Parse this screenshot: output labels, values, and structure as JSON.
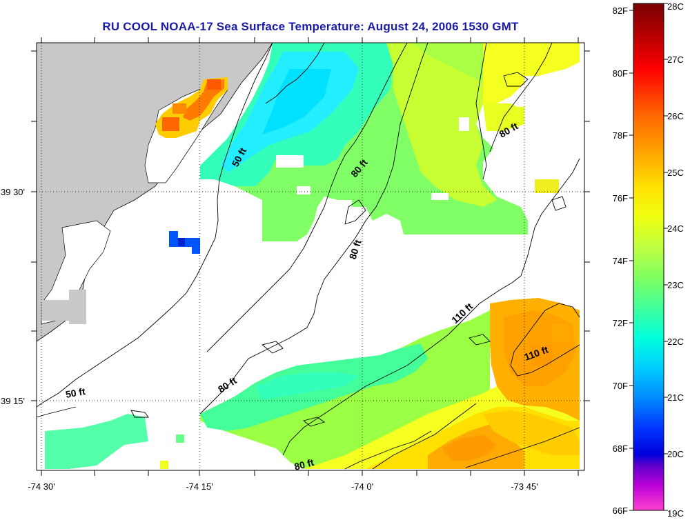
{
  "title": "RU COOL  NOAA-17  Sea Surface Temperature:  August 24, 2006 1530 GMT",
  "map": {
    "lat_labels": [
      "39 30'",
      "39 15'"
    ],
    "lon_labels": [
      "-74 30'",
      "-74 15'",
      "-74 0'",
      "-73 45'"
    ],
    "contour_labels": [
      "50 ft",
      "80 ft",
      "80 ft",
      "80 ft",
      "110 ft",
      "110 ft",
      "80 ft",
      "50 ft",
      "80 ft"
    ]
  },
  "colorbar": {
    "fahrenheit_labels": [
      "82F",
      "80F",
      "78F",
      "76F",
      "74F",
      "72F",
      "70F",
      "68F",
      "66F"
    ],
    "celsius_labels": [
      "28C",
      "27C",
      "26C",
      "25C",
      "24C",
      "23C",
      "22C",
      "21C",
      "20C",
      "19C"
    ],
    "colors": [
      "#7a0000",
      "#d40000",
      "#ff1a00",
      "#ff5a00",
      "#ff9900",
      "#ffcc00",
      "#ffff00",
      "#ccff33",
      "#88ff55",
      "#33ff99",
      "#00ffdd",
      "#00ccff",
      "#0088ff",
      "#0033ff",
      "#0000cc",
      "#6600cc",
      "#cc00cc",
      "#ff33cc"
    ]
  }
}
